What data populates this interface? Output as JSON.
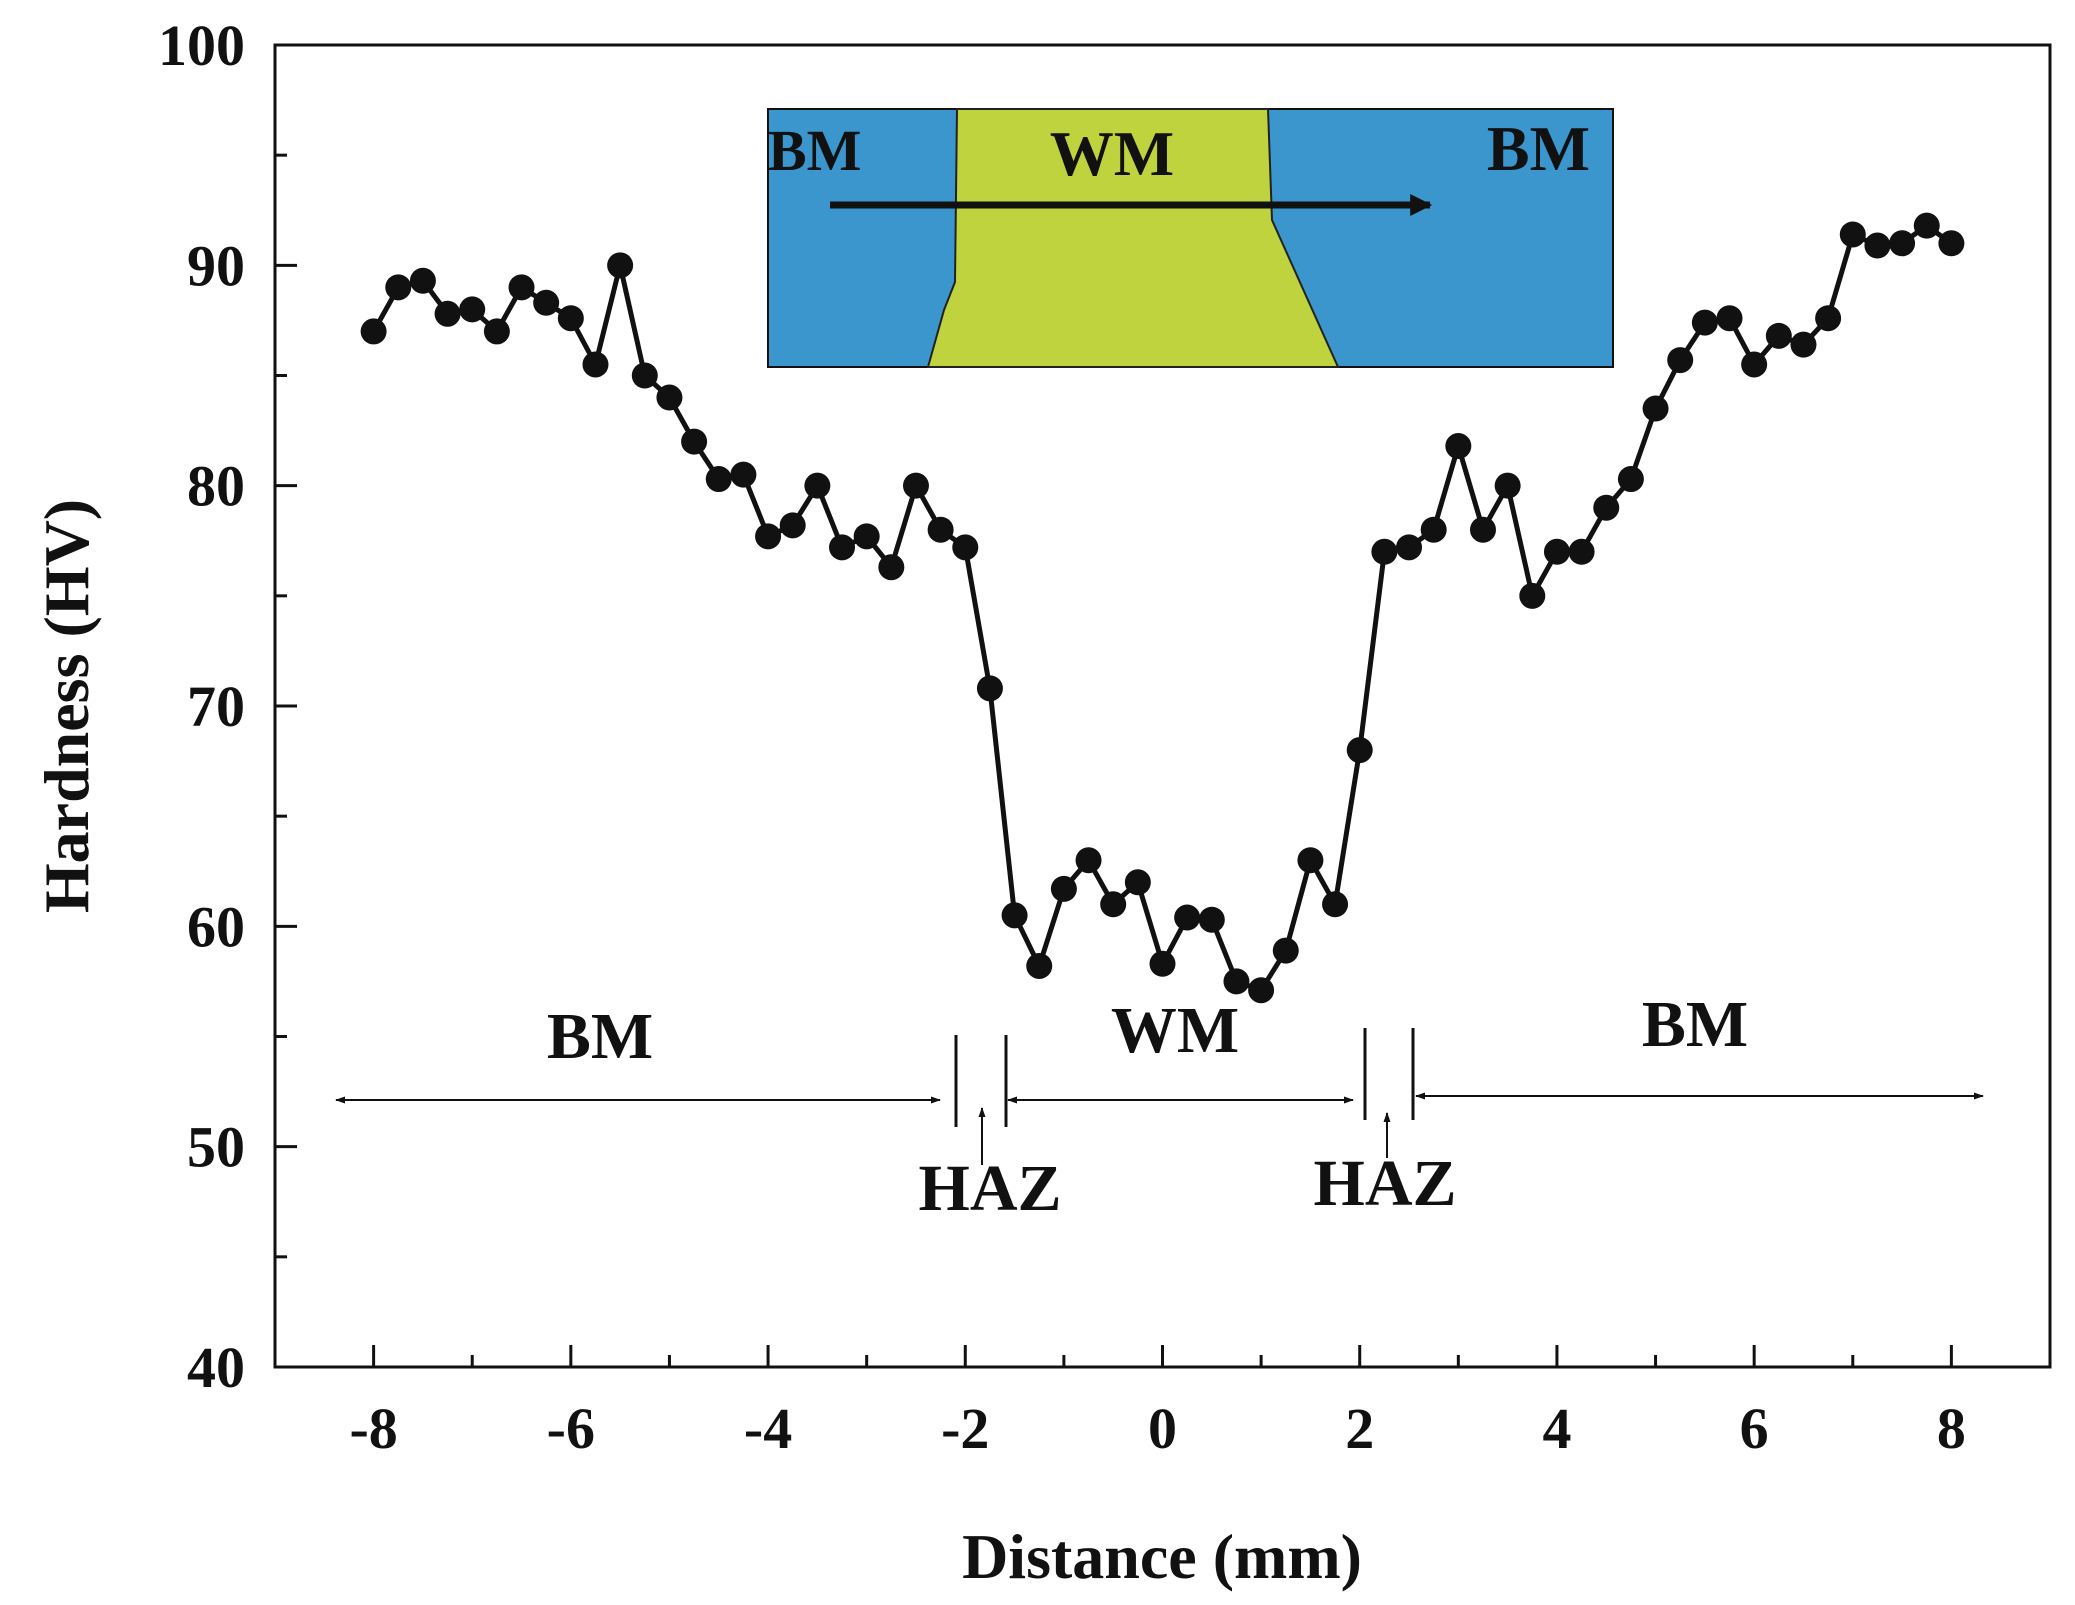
{
  "chart_data": {
    "type": "line",
    "title": "",
    "xlabel": "Distance (mm)",
    "ylabel": "Hardness (HV)",
    "xlim": [
      -9,
      9
    ],
    "ylim": [
      40,
      100
    ],
    "x_ticks": [
      -8,
      -6,
      -4,
      -2,
      0,
      2,
      4,
      6,
      8
    ],
    "x_tick_labels": [
      "-8",
      "-6",
      "-4",
      "-2",
      "0",
      "2",
      "4",
      "6",
      "8"
    ],
    "y_ticks": [
      40,
      50,
      60,
      70,
      80,
      90,
      100
    ],
    "y_tick_labels": [
      "40",
      "50",
      "60",
      "70",
      "80",
      "90",
      "100"
    ],
    "grid": false,
    "series": [
      {
        "name": "Hardness",
        "marker": "circle",
        "color": "#111111",
        "x": [
          -8.0,
          -7.75,
          -7.5,
          -7.25,
          -7.0,
          -6.75,
          -6.5,
          -6.25,
          -6.0,
          -5.75,
          -5.5,
          -5.25,
          -5.0,
          -4.75,
          -4.5,
          -4.25,
          -4.0,
          -3.75,
          -3.5,
          -3.25,
          -3.0,
          -2.75,
          -2.5,
          -2.25,
          -2.0,
          -1.75,
          -1.5,
          -1.25,
          -1.0,
          -0.75,
          -0.5,
          -0.25,
          0.0,
          0.25,
          0.5,
          0.75,
          1.0,
          1.25,
          1.5,
          1.75,
          2.0,
          2.25,
          2.5,
          2.75,
          3.0,
          3.25,
          3.5,
          3.75,
          4.0,
          4.25,
          4.5,
          4.75,
          5.0,
          5.25,
          5.5,
          5.75,
          6.0,
          6.25,
          6.5,
          6.75,
          7.0,
          7.25,
          7.5,
          7.75,
          8.0
        ],
        "y": [
          87.0,
          89.0,
          89.3,
          87.8,
          88.0,
          87.0,
          89.0,
          88.3,
          87.6,
          85.5,
          90.0,
          85.0,
          84.0,
          82.0,
          80.3,
          80.5,
          77.7,
          78.2,
          80.0,
          77.2,
          77.7,
          76.3,
          80.0,
          78.0,
          77.2,
          70.8,
          60.5,
          58.2,
          61.7,
          63.0,
          61.0,
          62.0,
          58.3,
          60.4,
          60.3,
          57.5,
          57.1,
          58.9,
          63.0,
          61.0,
          68.0,
          77.0,
          77.2,
          78.0,
          81.8,
          78.0,
          80.0,
          75.0,
          77.0,
          77.0,
          79.0,
          80.3,
          83.5,
          85.7,
          87.4,
          87.6,
          85.5,
          86.8,
          86.4,
          87.6,
          91.4,
          90.9,
          91.0,
          91.8,
          91.0
        ]
      }
    ],
    "annotations": {
      "region_labels": [
        "BM",
        "WM",
        "BM"
      ],
      "haz_labels": [
        "HAZ",
        "HAZ"
      ],
      "region_boundaries_mm": [
        -2.0,
        -1.55,
        2.0,
        2.55
      ],
      "inset": {
        "labels": [
          "BM",
          "WM",
          "BM"
        ],
        "base_color": "#3a96cc",
        "weld_color": "#bfd33f"
      }
    }
  }
}
